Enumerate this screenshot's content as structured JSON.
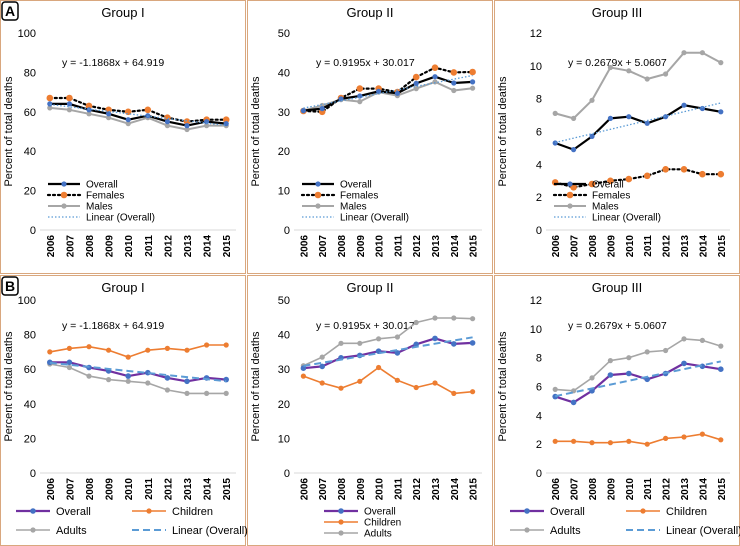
{
  "panel_labels": [
    "A",
    "B"
  ],
  "colors": {
    "frame": "#d9a77e",
    "overall_A": "#000000",
    "females": "#000000",
    "female_marker": "#ed7d31",
    "males_A": "#a6a6a6",
    "linear_A": "#5b9bd5",
    "overall_B": "#7030a0",
    "overall_marker_B": "#4472c4",
    "children": "#ed7d31",
    "adults": "#a6a6a6",
    "linear_B": "#5b9bd5",
    "overall_marker_A": "#4472c4"
  },
  "chart_data": [
    {
      "type": "line",
      "row": "A",
      "title": "Group I",
      "ylabel": "Percent of total deaths",
      "ylim": [
        0,
        100
      ],
      "yticks": [
        0,
        20,
        40,
        60,
        80,
        100
      ],
      "categories": [
        "2006",
        "2007",
        "2008",
        "2009",
        "2010",
        "2011",
        "2012",
        "2013",
        "2014",
        "2015"
      ],
      "equation": "y = -1.1868x + 64.919",
      "trend": {
        "slope": -1.1868,
        "intercept": 64.919
      },
      "series": [
        {
          "name": "Overall",
          "values": [
            64,
            64,
            61,
            59,
            56,
            58,
            55,
            53,
            55,
            54
          ]
        },
        {
          "name": "Females",
          "values": [
            67,
            67,
            63,
            61,
            60,
            61,
            57,
            55,
            56,
            56
          ]
        },
        {
          "name": "Males",
          "values": [
            62,
            61,
            59,
            57,
            54,
            57,
            53,
            51,
            53,
            53
          ]
        }
      ],
      "legend": [
        "Overall",
        "Females",
        "Males",
        "Linear (Overall)"
      ]
    },
    {
      "type": "line",
      "row": "A",
      "title": "Group II",
      "ylabel": "Percent of total deaths",
      "ylim": [
        0,
        50
      ],
      "yticks": [
        0,
        10,
        20,
        30,
        40,
        50
      ],
      "categories": [
        "2006",
        "2007",
        "2008",
        "2009",
        "2010",
        "2011",
        "2012",
        "2013",
        "2014",
        "2015"
      ],
      "equation": "y = 0.9195x + 30.017",
      "trend": {
        "slope": 0.9195,
        "intercept": 30.017
      },
      "series": [
        {
          "name": "Overall",
          "values": [
            30.3,
            30.8,
            33.3,
            34.0,
            35.2,
            34.7,
            37.2,
            38.9,
            37.3,
            37.6
          ]
        },
        {
          "name": "Females",
          "values": [
            30.2,
            30.0,
            33.5,
            35.9,
            35.9,
            35.0,
            38.8,
            41.2,
            40.0,
            40.1
          ]
        },
        {
          "name": "Males",
          "values": [
            30.3,
            31.6,
            33.1,
            32.6,
            35.0,
            34.1,
            35.9,
            37.6,
            35.4,
            36.0
          ]
        }
      ],
      "legend": [
        "Overall",
        "Females",
        "Males",
        "Linear (Overall)"
      ]
    },
    {
      "type": "line",
      "row": "A",
      "title": "Group III",
      "ylabel": "Percent of total deaths",
      "ylim": [
        0,
        12
      ],
      "yticks": [
        0,
        2,
        4,
        6,
        8,
        10,
        12
      ],
      "categories": [
        "2006",
        "2007",
        "2008",
        "2009",
        "2010",
        "2011",
        "2012",
        "2013",
        "2014",
        "2015"
      ],
      "equation": "y = 0.2679x + 5.0607",
      "trend": {
        "slope": 0.2679,
        "intercept": 5.0607
      },
      "series": [
        {
          "name": "Overall",
          "values": [
            5.3,
            4.9,
            5.7,
            6.8,
            6.9,
            6.5,
            6.9,
            7.6,
            7.4,
            7.2
          ]
        },
        {
          "name": "Females",
          "values": [
            2.9,
            2.6,
            2.8,
            3.0,
            3.1,
            3.3,
            3.7,
            3.7,
            3.4,
            3.4
          ]
        },
        {
          "name": "Males",
          "values": [
            7.1,
            6.8,
            7.9,
            9.9,
            9.7,
            9.2,
            9.5,
            10.8,
            10.8,
            10.2
          ]
        }
      ],
      "legend": [
        "Overall",
        "Females",
        "Males",
        "Linear (Overall)"
      ]
    },
    {
      "type": "line",
      "row": "B",
      "title": "Group I",
      "ylabel": "Percent of total deaths",
      "ylim": [
        0,
        100
      ],
      "yticks": [
        0,
        20,
        40,
        60,
        80,
        100
      ],
      "categories": [
        "2006",
        "2007",
        "2008",
        "2009",
        "2010",
        "2011",
        "2012",
        "2013",
        "2014",
        "2015"
      ],
      "equation": "y = -1.1868x + 64.919",
      "trend": {
        "slope": -1.1868,
        "intercept": 64.919
      },
      "series": [
        {
          "name": "Overall",
          "values": [
            64,
            64,
            61,
            59,
            56,
            58,
            55,
            53,
            55,
            54
          ]
        },
        {
          "name": "Children",
          "values": [
            70,
            72,
            73,
            71,
            67,
            71,
            72,
            71,
            74,
            74
          ]
        },
        {
          "name": "Adults",
          "values": [
            63,
            61,
            56,
            54,
            53,
            52,
            48,
            46,
            46,
            46
          ]
        }
      ],
      "legend": [
        "Overall",
        "Children",
        "Adults",
        "Linear (Overall)"
      ]
    },
    {
      "type": "line",
      "row": "B",
      "title": "Group II",
      "ylabel": "Percent of total deaths",
      "ylim": [
        0,
        50
      ],
      "yticks": [
        0,
        10,
        20,
        30,
        40,
        50
      ],
      "categories": [
        "2006",
        "2007",
        "2008",
        "2009",
        "2010",
        "2011",
        "2012",
        "2013",
        "2014",
        "2015"
      ],
      "equation": "y = 0.9195x + 30.017",
      "trend": {
        "slope": 0.9195,
        "intercept": 30.017
      },
      "series": [
        {
          "name": "Overall",
          "values": [
            30.3,
            30.8,
            33.3,
            34.0,
            35.2,
            34.7,
            37.2,
            38.9,
            37.3,
            37.6
          ]
        },
        {
          "name": "Children",
          "values": [
            28.0,
            26.0,
            24.5,
            26.5,
            30.5,
            26.8,
            24.7,
            26.0,
            23.0,
            23.5
          ]
        },
        {
          "name": "Adults",
          "values": [
            31.0,
            33.5,
            37.5,
            37.5,
            38.8,
            39.3,
            43.5,
            44.8,
            44.8,
            44.6
          ]
        }
      ],
      "legend": [
        "Overall",
        "Children",
        "Adults"
      ]
    },
    {
      "type": "line",
      "row": "B",
      "title": "Group III",
      "ylabel": "Percent of total deaths",
      "ylim": [
        0,
        12
      ],
      "yticks": [
        0,
        2,
        4,
        6,
        8,
        10,
        12
      ],
      "categories": [
        "2006",
        "2007",
        "2008",
        "2009",
        "2010",
        "2011",
        "2012",
        "2013",
        "2014",
        "2015"
      ],
      "equation": "y = 0.2679x + 5.0607",
      "trend": {
        "slope": 0.2679,
        "intercept": 5.0607
      },
      "series": [
        {
          "name": "Overall",
          "values": [
            5.3,
            4.9,
            5.7,
            6.8,
            6.9,
            6.5,
            6.9,
            7.6,
            7.4,
            7.2
          ]
        },
        {
          "name": "Children",
          "values": [
            2.2,
            2.2,
            2.1,
            2.1,
            2.2,
            2.0,
            2.4,
            2.5,
            2.7,
            2.3
          ]
        },
        {
          "name": "Adults",
          "values": [
            5.8,
            5.7,
            6.6,
            7.8,
            8.0,
            8.4,
            8.5,
            9.3,
            9.2,
            8.8
          ]
        }
      ],
      "legend": [
        "Overall",
        "Children",
        "Adults",
        "Linear (Overall)"
      ]
    }
  ]
}
